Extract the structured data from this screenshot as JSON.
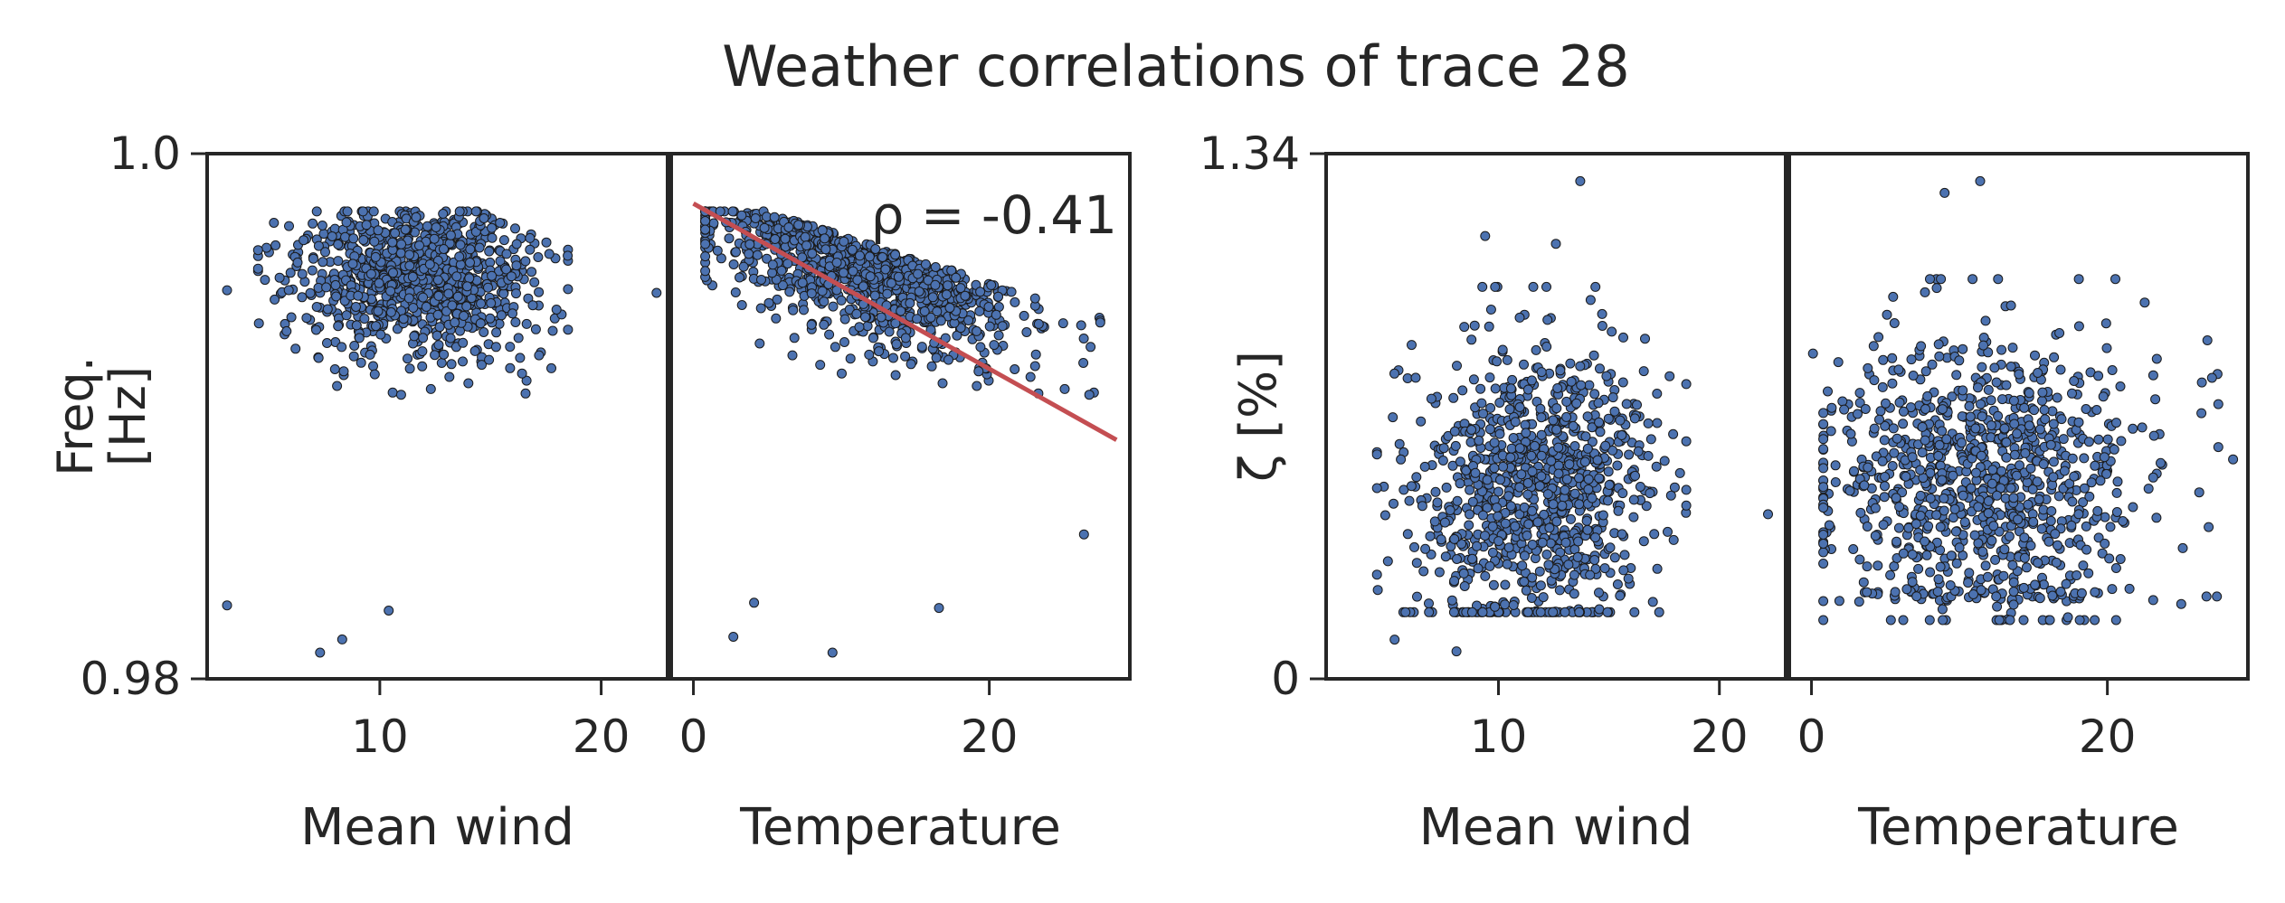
{
  "figure": {
    "title": "Weather correlations of trace 28"
  },
  "colors": {
    "point_fill": "#4c72b0",
    "point_edge": "#1a1a1a",
    "fit_line": "#c44e52",
    "axis": "#262626",
    "background": "#ffffff"
  },
  "chart_data": [
    {
      "type": "scatter",
      "panel": "freq-vs-mean-wind",
      "xlabel": "Mean wind",
      "ylabel": "Freq.\n[Hz]",
      "ylabel_lines": [
        "Freq.",
        "[Hz]"
      ],
      "xlim": [
        2.2,
        23.0
      ],
      "ylim": [
        0.98,
        1.0
      ],
      "xticks": [
        10,
        20
      ],
      "xtick_labels": [
        "10",
        "20"
      ],
      "yticks": [
        0.98,
        1.0
      ],
      "ytick_labels": [
        "0.98",
        "1.0"
      ],
      "grid": false,
      "approx_point_count": 900,
      "x_mean": 11.8,
      "x_sd": 2.8,
      "y_center": 0.9945,
      "y_spread": 0.0045,
      "y_max": 0.9978,
      "outliers": [
        [
          3.1,
          0.9948
        ],
        [
          3.1,
          0.9828
        ],
        [
          22.5,
          0.9947
        ],
        [
          7.3,
          0.981
        ],
        [
          8.3,
          0.9815
        ],
        [
          10.4,
          0.9826
        ]
      ]
    },
    {
      "type": "scatter",
      "panel": "freq-vs-temperature",
      "xlabel": "Temperature",
      "ylabel": "",
      "xlim": [
        -1.5,
        29.5
      ],
      "ylim": [
        0.98,
        1.0
      ],
      "xticks": [
        0,
        20
      ],
      "xtick_labels": [
        "0",
        "20"
      ],
      "grid": false,
      "approx_point_count": 900,
      "x_mean": 11.5,
      "x_sd": 5.5,
      "y_center": 0.9945,
      "y_spread": 0.0045,
      "y_max": 0.9978,
      "fit_line": {
        "x": [
          0,
          28.6
        ],
        "y": [
          0.9981,
          0.9891
        ]
      },
      "annotation": "ρ = -0.41",
      "outliers": [
        [
          2.7,
          0.9816
        ],
        [
          4.1,
          0.9829
        ],
        [
          9.4,
          0.981
        ],
        [
          16.6,
          0.9827
        ],
        [
          26.4,
          0.9855
        ]
      ]
    },
    {
      "type": "scatter",
      "panel": "damping-vs-mean-wind",
      "xlabel": "Mean wind",
      "ylabel": "ζ [%]",
      "xlim": [
        2.2,
        23.0
      ],
      "ylim": [
        0,
        1.34
      ],
      "xticks": [
        10,
        20
      ],
      "xtick_labels": [
        "10",
        "20"
      ],
      "yticks": [
        0,
        1.34
      ],
      "ytick_labels": [
        "0",
        "1.34"
      ],
      "grid": false,
      "approx_point_count": 1000,
      "x_mean": 11.8,
      "x_sd": 2.8,
      "y_center": 0.48,
      "y_spread": 0.2,
      "outliers": [
        [
          13.7,
          1.27
        ],
        [
          9.4,
          1.13
        ],
        [
          12.6,
          1.11
        ],
        [
          22.2,
          0.42
        ],
        [
          5.3,
          0.1
        ],
        [
          8.1,
          0.07
        ]
      ]
    },
    {
      "type": "scatter",
      "panel": "damping-vs-temperature",
      "xlabel": "Temperature",
      "ylabel": "",
      "xlim": [
        -1.5,
        29.5
      ],
      "ylim": [
        0,
        1.34
      ],
      "xticks": [
        0,
        20
      ],
      "xtick_labels": [
        "0",
        "20"
      ],
      "grid": false,
      "approx_point_count": 1000,
      "x_mean": 11.5,
      "x_sd": 5.5,
      "y_center": 0.52,
      "y_spread": 0.22,
      "outliers": [
        [
          11.4,
          1.27
        ],
        [
          9.0,
          1.24
        ],
        [
          28.5,
          0.56
        ],
        [
          0.1,
          0.83
        ],
        [
          26.7,
          0.21
        ],
        [
          27.4,
          0.21
        ]
      ]
    }
  ]
}
